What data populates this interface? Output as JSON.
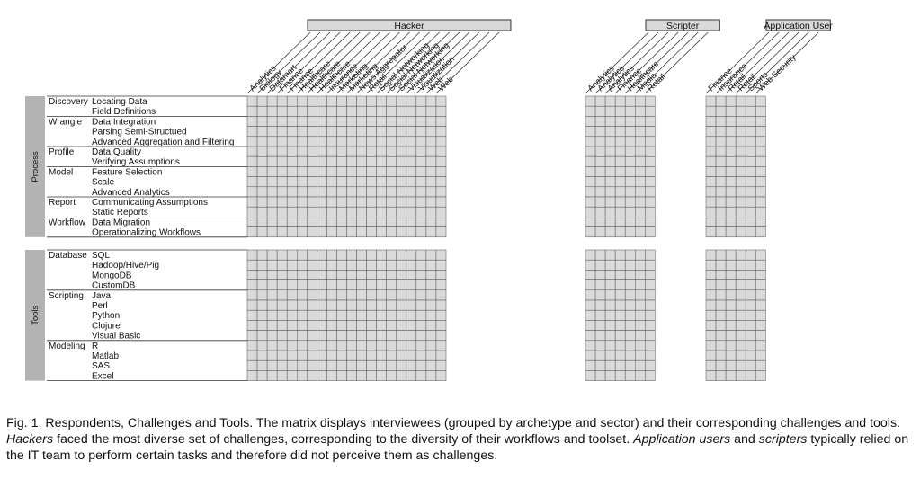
{
  "groups": [
    {
      "label": "Hacker",
      "columns": [
        "Analytics",
        "Biology",
        "Datamart",
        "Finance",
        "Finance",
        "Healthcare",
        "Healthcare",
        "Healthcare",
        "Insurance",
        "Marketing",
        "Marketing",
        "News Aggregator",
        "Retail",
        "Social Networking",
        "Social Networking",
        "Social Networking",
        "Visualization",
        "Visualization",
        "Web",
        "Web"
      ]
    },
    {
      "label": "Scripter",
      "columns": [
        "Analytics",
        "Analytics",
        "Analytics",
        "Finance",
        "Healthcare",
        "Media",
        "Retail"
      ]
    },
    {
      "label": "Application User",
      "columns": [
        "Finance",
        "Insurance",
        "Retail",
        "Retail",
        "Sports",
        "Web Security"
      ]
    }
  ],
  "sections": [
    {
      "label": "Process",
      "categories": [
        {
          "label": "Discovery",
          "rows": [
            "Locating Data",
            "Field Definitions"
          ]
        },
        {
          "label": "Wrangle",
          "rows": [
            "Data Integration",
            "Parsing Semi-Structued",
            "Advanced Aggregation and Filtering"
          ]
        },
        {
          "label": "Profile",
          "rows": [
            "Data Quality",
            "Verifying Assumptions"
          ]
        },
        {
          "label": "Model",
          "rows": [
            "Feature Selection",
            "Scale",
            "Advanced Analytics"
          ]
        },
        {
          "label": "Report",
          "rows": [
            "Communicating Assumptions",
            "Static Reports"
          ]
        },
        {
          "label": "Workflow",
          "rows": [
            "Data Migration",
            "Operationalizing Workflows"
          ]
        }
      ]
    },
    {
      "label": "Tools",
      "categories": [
        {
          "label": "Database",
          "rows": [
            "SQL",
            "Hadoop/Hive/Pig",
            "MongoDB",
            "CustomDB"
          ]
        },
        {
          "label": "Scripting",
          "rows": [
            "Java",
            "Perl",
            "Python",
            "Clojure",
            "Visual Basic"
          ]
        },
        {
          "label": "Modeling",
          "rows": [
            "R",
            "Matlab",
            "SAS",
            "Excel"
          ]
        }
      ]
    }
  ],
  "mark_symbol": "x",
  "colors": {
    "marked_cell": "#8fa9cf",
    "empty_cell": "#dadada",
    "section_bar": "#b3b3b3",
    "grid_line": "#555555"
  },
  "caption": {
    "fig_label": "Fig. 1.",
    "text_1": "Respondents, Challenges and Tools. The matrix displays interviewees (grouped by archetype and sector) and their corresponding challenges and tools.",
    "hackers": "Hackers",
    "text_2": "faced the most diverse set of challenges, corresponding to the diversity of their workflows and toolset.",
    "app_users": "Application users",
    "text_3": "and",
    "scripters": "scripters",
    "text_4": "typically relied on the IT team to perform certain tasks and therefore did not perceive them as challenges."
  }
}
